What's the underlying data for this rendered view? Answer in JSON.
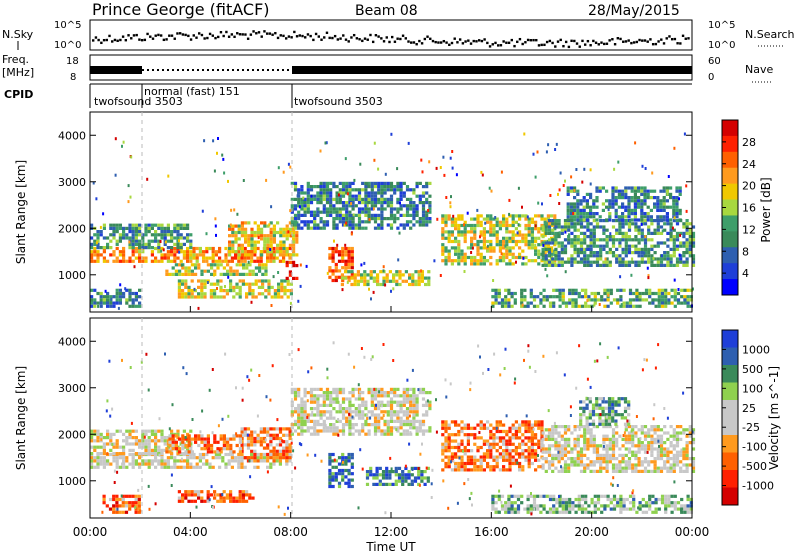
{
  "header": {
    "station": "Prince George (fitACF)",
    "beam": "Beam 08",
    "date": "28/May/2015"
  },
  "top_panels": {
    "nsky_label": "N.Sky",
    "nsky_ticks": [
      "10^5",
      "10^0"
    ],
    "nsearch_label": "N.Search",
    "freq_label_1": "Freq.",
    "freq_label_2": "[MHz]",
    "freq_ticks": [
      "18",
      "8"
    ],
    "nave_ticks": [
      "60",
      "0"
    ],
    "nave_label": "Nave",
    "cpid_label": "CPID",
    "cpid_segments": [
      {
        "label": "twofsound 3503",
        "start_h": 0,
        "end_h": 2
      },
      {
        "label": "normal (fast) 151",
        "start_h": 2,
        "end_h": 8
      },
      {
        "label": "twofsound 3503",
        "start_h": 8,
        "end_h": 24
      }
    ]
  },
  "chart_data": [
    {
      "type": "heatmap",
      "panel": "power",
      "xlabel": "",
      "ylabel": "Slant Range [km]",
      "xlim_hours": [
        0,
        24
      ],
      "ylim_km": [
        200,
        4500
      ],
      "yticks": [
        "1000",
        "2000",
        "3000",
        "4000"
      ],
      "colorbar_label": "Power [dB]",
      "colorbar_ticks": [
        "28",
        "24",
        "20",
        "16",
        "12",
        "8",
        "4"
      ],
      "colorbar_colors": [
        "#d40000",
        "#ff2000",
        "#ff6000",
        "#ff9a1e",
        "#f0c800",
        "#a8d840",
        "#3e9e6a",
        "#3a8a5a",
        "#2e5fb0",
        "#1f3fd8",
        "#0000ff"
      ],
      "regions": [
        {
          "h0": 0.0,
          "h1": 8.0,
          "r0": 1300,
          "r1": 1600,
          "level": 0.7
        },
        {
          "h0": 0.0,
          "h1": 4.0,
          "r0": 1600,
          "r1": 2100,
          "level": 0.35
        },
        {
          "h0": 3.0,
          "h1": 7.0,
          "r0": 1000,
          "r1": 1250,
          "level": 0.55
        },
        {
          "h0": 3.5,
          "h1": 8.0,
          "r0": 550,
          "r1": 900,
          "level": 0.55
        },
        {
          "h0": 5.5,
          "h1": 8.3,
          "r0": 1450,
          "r1": 2150,
          "level": 0.6
        },
        {
          "h0": 7.8,
          "h1": 8.3,
          "r0": 900,
          "r1": 1300,
          "level": 0.95
        },
        {
          "h0": 8.0,
          "h1": 13.5,
          "r0": 2000,
          "r1": 3000,
          "level": 0.3
        },
        {
          "h0": 9.5,
          "h1": 10.5,
          "r0": 900,
          "r1": 1600,
          "level": 0.8
        },
        {
          "h0": 10.0,
          "h1": 13.5,
          "r0": 800,
          "r1": 1100,
          "level": 0.55
        },
        {
          "h0": 14.0,
          "h1": 18.5,
          "r0": 1200,
          "r1": 2300,
          "level": 0.55
        },
        {
          "h0": 18.0,
          "h1": 24.0,
          "r0": 1200,
          "r1": 2200,
          "level": 0.35
        },
        {
          "h0": 19.0,
          "h1": 23.5,
          "r0": 2200,
          "r1": 2900,
          "level": 0.3
        },
        {
          "h0": 16.0,
          "h1": 24.0,
          "r0": 300,
          "r1": 700,
          "level": 0.4
        },
        {
          "h0": 0.0,
          "h1": 2.0,
          "r0": 300,
          "r1": 700,
          "level": 0.3
        }
      ]
    },
    {
      "type": "heatmap",
      "panel": "velocity",
      "xlabel": "Time UT",
      "ylabel": "Slant Range [km]",
      "xlim_hours": [
        0,
        24
      ],
      "ylim_km": [
        200,
        4500
      ],
      "yticks": [
        "1000",
        "2000",
        "3000",
        "4000"
      ],
      "xticks": [
        "00:00",
        "04:00",
        "08:00",
        "12:00",
        "16:00",
        "20:00",
        "00:00"
      ],
      "colorbar_label": "Velocity [m s^-1]",
      "colorbar_ticks": [
        "1000",
        "500",
        "100",
        "25",
        "-25",
        "-100",
        "-500",
        "-1000"
      ],
      "colorbar_colors": [
        "#1f3fd8",
        "#2e5fb0",
        "#3a8a5a",
        "#8fd14f",
        "#c8c8c8",
        "#c8c8c8",
        "#ff9a1e",
        "#ff6000",
        "#ff2000",
        "#d40000"
      ],
      "regions": [
        {
          "h0": 0.0,
          "h1": 8.0,
          "r0": 1300,
          "r1": 1600,
          "level": 0.5
        },
        {
          "h0": 0.0,
          "h1": 4.0,
          "r0": 1600,
          "r1": 2100,
          "level": 0.5
        },
        {
          "h0": 3.5,
          "h1": 6.5,
          "r0": 550,
          "r1": 800,
          "level": 0.75
        },
        {
          "h0": 6.0,
          "h1": 8.0,
          "r0": 1450,
          "r1": 2150,
          "level": 0.7
        },
        {
          "h0": 3.0,
          "h1": 6.0,
          "r0": 1600,
          "r1": 2000,
          "level": 0.72
        },
        {
          "h0": 8.0,
          "h1": 13.5,
          "r0": 2000,
          "r1": 3000,
          "level": 0.5
        },
        {
          "h0": 9.5,
          "h1": 10.5,
          "r0": 900,
          "r1": 1600,
          "level": 0.15
        },
        {
          "h0": 11.0,
          "h1": 13.5,
          "r0": 900,
          "r1": 1300,
          "level": 0.2
        },
        {
          "h0": 14.0,
          "h1": 18.0,
          "r0": 1200,
          "r1": 2300,
          "level": 0.72
        },
        {
          "h0": 18.0,
          "h1": 24.0,
          "r0": 1200,
          "r1": 2200,
          "level": 0.5
        },
        {
          "h0": 19.5,
          "h1": 21.5,
          "r0": 2200,
          "r1": 2800,
          "level": 0.3
        },
        {
          "h0": 16.0,
          "h1": 24.0,
          "r0": 300,
          "r1": 700,
          "level": 0.35
        },
        {
          "h0": 0.5,
          "h1": 2.0,
          "r0": 300,
          "r1": 700,
          "level": 0.75
        }
      ]
    }
  ]
}
